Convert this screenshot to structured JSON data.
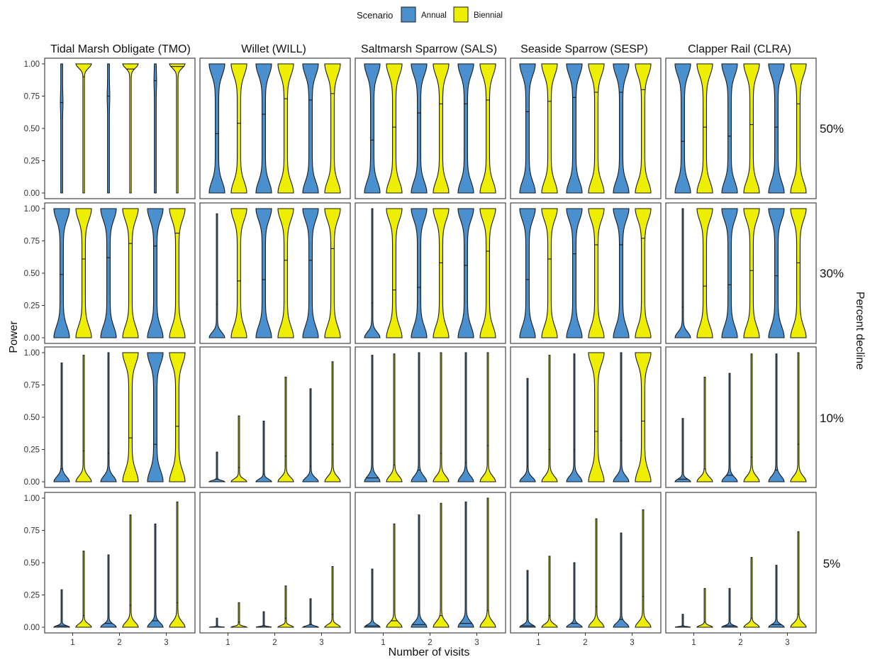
{
  "chart_data": {
    "type": "violin",
    "legend": {
      "title": "Scenario",
      "position": "top",
      "entries": [
        {
          "name": "Annual",
          "color": "#4A90CE"
        },
        {
          "name": "Biennial",
          "color": "#EEEE00"
        }
      ]
    },
    "columns": [
      "Tidal Marsh Obligate (TMO)",
      "Willet (WILL)",
      "Saltmarsh Sparrow (SALS)",
      "Seaside Sparrow (SESP)",
      "Clapper Rail (CLRA)"
    ],
    "rows": [
      "50%",
      "30%",
      "10%",
      "5%"
    ],
    "row_axis_title": "Percent decline",
    "xlabel": "Number of visits",
    "ylabel": "Power",
    "x_categories": [
      "1",
      "2",
      "3"
    ],
    "y_ticks": [
      "0.00",
      "0.25",
      "0.50",
      "0.75",
      "1.00"
    ],
    "ylim": [
      0,
      1
    ],
    "grid": false,
    "panels": [
      [
        {
          "Annual": [
            {
              "min": 0,
              "max": 1,
              "median": 0.7,
              "shape": "thin"
            },
            {
              "min": 0,
              "max": 1,
              "median": 0.75,
              "shape": "thin"
            },
            {
              "min": 0,
              "max": 1,
              "median": 0.87,
              "shape": "thin"
            }
          ],
          "Biennial": [
            {
              "min": 0,
              "max": 1,
              "median": 0.9,
              "shape": "thin-top"
            },
            {
              "min": 0,
              "max": 1,
              "median": 0.96,
              "shape": "thin-top"
            },
            {
              "min": 0,
              "max": 1,
              "median": 0.98,
              "shape": "thin-top"
            }
          ]
        },
        {
          "Annual": [
            {
              "min": 0,
              "max": 1,
              "median": 0.46,
              "shape": "wide"
            },
            {
              "min": 0,
              "max": 1,
              "median": 0.61,
              "shape": "wide"
            },
            {
              "min": 0,
              "max": 1,
              "median": 0.72,
              "shape": "wide"
            }
          ],
          "Biennial": [
            {
              "min": 0,
              "max": 1,
              "median": 0.54,
              "shape": "wide"
            },
            {
              "min": 0,
              "max": 1,
              "median": 0.73,
              "shape": "wide"
            },
            {
              "min": 0,
              "max": 1,
              "median": 0.77,
              "shape": "wide"
            }
          ]
        },
        {
          "Annual": [
            {
              "min": 0,
              "max": 1,
              "median": 0.41,
              "shape": "wide"
            },
            {
              "min": 0,
              "max": 1,
              "median": 0.62,
              "shape": "wide"
            },
            {
              "min": 0,
              "max": 1,
              "median": 0.69,
              "shape": "wide"
            }
          ],
          "Biennial": [
            {
              "min": 0,
              "max": 1,
              "median": 0.51,
              "shape": "wide"
            },
            {
              "min": 0,
              "max": 1,
              "median": 0.69,
              "shape": "wide"
            },
            {
              "min": 0,
              "max": 1,
              "median": 0.72,
              "shape": "wide"
            }
          ]
        },
        {
          "Annual": [
            {
              "min": 0,
              "max": 1,
              "median": 0.63,
              "shape": "wide"
            },
            {
              "min": 0,
              "max": 1,
              "median": 0.74,
              "shape": "wide"
            },
            {
              "min": 0,
              "max": 1,
              "median": 0.78,
              "shape": "wide"
            }
          ],
          "Biennial": [
            {
              "min": 0,
              "max": 1,
              "median": 0.71,
              "shape": "wide"
            },
            {
              "min": 0,
              "max": 1,
              "median": 0.78,
              "shape": "wide"
            },
            {
              "min": 0,
              "max": 1,
              "median": 0.8,
              "shape": "wide"
            }
          ]
        },
        {
          "Annual": [
            {
              "min": 0,
              "max": 1,
              "median": 0.4,
              "shape": "wide"
            },
            {
              "min": 0,
              "max": 1,
              "median": 0.44,
              "shape": "wide"
            },
            {
              "min": 0,
              "max": 1,
              "median": 0.51,
              "shape": "wide"
            }
          ],
          "Biennial": [
            {
              "min": 0,
              "max": 1,
              "median": 0.51,
              "shape": "wide"
            },
            {
              "min": 0,
              "max": 1,
              "median": 0.53,
              "shape": "wide"
            },
            {
              "min": 0,
              "max": 1,
              "median": 0.69,
              "shape": "wide"
            }
          ]
        }
      ],
      [
        {
          "Annual": [
            {
              "min": 0,
              "max": 1,
              "median": 0.49,
              "shape": "wide"
            },
            {
              "min": 0,
              "max": 1,
              "median": 0.62,
              "shape": "wide"
            },
            {
              "min": 0,
              "max": 1,
              "median": 0.71,
              "shape": "wide"
            }
          ],
          "Biennial": [
            {
              "min": 0,
              "max": 1,
              "median": 0.61,
              "shape": "wide"
            },
            {
              "min": 0,
              "max": 1,
              "median": 0.73,
              "shape": "wide"
            },
            {
              "min": 0,
              "max": 1,
              "median": 0.81,
              "shape": "wide"
            }
          ]
        },
        {
          "Annual": [
            {
              "min": 0,
              "max": 0.96,
              "median": 0.26,
              "shape": "bottom"
            },
            {
              "min": 0,
              "max": 1,
              "median": 0.45,
              "shape": "wide"
            },
            {
              "min": 0,
              "max": 1,
              "median": 0.6,
              "shape": "wide"
            }
          ],
          "Biennial": [
            {
              "min": 0,
              "max": 1,
              "median": 0.44,
              "shape": "wide"
            },
            {
              "min": 0,
              "max": 1,
              "median": 0.6,
              "shape": "wide"
            },
            {
              "min": 0,
              "max": 1,
              "median": 0.69,
              "shape": "wide"
            }
          ]
        },
        {
          "Annual": [
            {
              "min": 0,
              "max": 1,
              "median": 0.27,
              "shape": "bottom"
            },
            {
              "min": 0,
              "max": 1,
              "median": 0.39,
              "shape": "wide"
            },
            {
              "min": 0,
              "max": 1,
              "median": 0.56,
              "shape": "wide"
            }
          ],
          "Biennial": [
            {
              "min": 0,
              "max": 1,
              "median": 0.37,
              "shape": "wide"
            },
            {
              "min": 0,
              "max": 1,
              "median": 0.58,
              "shape": "wide"
            },
            {
              "min": 0,
              "max": 1,
              "median": 0.67,
              "shape": "wide"
            }
          ]
        },
        {
          "Annual": [
            {
              "min": 0,
              "max": 1,
              "median": 0.45,
              "shape": "wide"
            },
            {
              "min": 0,
              "max": 1,
              "median": 0.65,
              "shape": "wide"
            },
            {
              "min": 0,
              "max": 1,
              "median": 0.72,
              "shape": "wide"
            }
          ],
          "Biennial": [
            {
              "min": 0,
              "max": 1,
              "median": 0.61,
              "shape": "wide"
            },
            {
              "min": 0,
              "max": 1,
              "median": 0.72,
              "shape": "wide"
            },
            {
              "min": 0,
              "max": 1,
              "median": 0.77,
              "shape": "wide"
            }
          ]
        },
        {
          "Annual": [
            {
              "min": 0,
              "max": 1,
              "median": 0.24,
              "shape": "bottom"
            },
            {
              "min": 0,
              "max": 1,
              "median": 0.41,
              "shape": "wide"
            },
            {
              "min": 0,
              "max": 1,
              "median": 0.48,
              "shape": "wide"
            }
          ],
          "Biennial": [
            {
              "min": 0,
              "max": 1,
              "median": 0.4,
              "shape": "wide"
            },
            {
              "min": 0,
              "max": 1,
              "median": 0.52,
              "shape": "wide"
            },
            {
              "min": 0,
              "max": 1,
              "median": 0.58,
              "shape": "wide"
            }
          ]
        }
      ],
      [
        {
          "Annual": [
            {
              "min": 0,
              "max": 0.92,
              "median": 0.1,
              "shape": "bottom"
            },
            {
              "min": 0,
              "max": 1,
              "median": 0.22,
              "shape": "bottom"
            },
            {
              "min": 0,
              "max": 1,
              "median": 0.29,
              "shape": "wide"
            }
          ],
          "Biennial": [
            {
              "min": 0,
              "max": 0.98,
              "median": 0.24,
              "shape": "bottom"
            },
            {
              "min": 0,
              "max": 1,
              "median": 0.34,
              "shape": "wide"
            },
            {
              "min": 0,
              "max": 1,
              "median": 0.43,
              "shape": "wide"
            }
          ]
        },
        {
          "Annual": [
            {
              "min": 0,
              "max": 0.23,
              "median": 0.02,
              "shape": "bottom"
            },
            {
              "min": 0,
              "max": 0.47,
              "median": 0.06,
              "shape": "bottom"
            },
            {
              "min": 0,
              "max": 0.72,
              "median": 0.12,
              "shape": "bottom"
            }
          ],
          "Biennial": [
            {
              "min": 0,
              "max": 0.51,
              "median": 0.11,
              "shape": "bottom"
            },
            {
              "min": 0,
              "max": 0.81,
              "median": 0.2,
              "shape": "bottom"
            },
            {
              "min": 0,
              "max": 0.93,
              "median": 0.29,
              "shape": "bottom"
            }
          ]
        },
        {
          "Annual": [
            {
              "min": 0,
              "max": 0.98,
              "median": 0.03,
              "shape": "bottom"
            },
            {
              "min": 0,
              "max": 1,
              "median": 0.09,
              "shape": "bottom"
            },
            {
              "min": 0,
              "max": 1,
              "median": 0.15,
              "shape": "bottom"
            }
          ],
          "Biennial": [
            {
              "min": 0,
              "max": 0.99,
              "median": 0.13,
              "shape": "bottom"
            },
            {
              "min": 0,
              "max": 1,
              "median": 0.22,
              "shape": "bottom"
            },
            {
              "min": 0,
              "max": 1,
              "median": 0.28,
              "shape": "bottom"
            }
          ]
        },
        {
          "Annual": [
            {
              "min": 0,
              "max": 0.8,
              "median": 0.12,
              "shape": "bottom"
            },
            {
              "min": 0,
              "max": 0.99,
              "median": 0.25,
              "shape": "bottom"
            },
            {
              "min": 0,
              "max": 1,
              "median": 0.32,
              "shape": "bottom"
            }
          ],
          "Biennial": [
            {
              "min": 0,
              "max": 0.98,
              "median": 0.25,
              "shape": "bottom"
            },
            {
              "min": 0,
              "max": 1,
              "median": 0.39,
              "shape": "wide"
            },
            {
              "min": 0,
              "max": 1,
              "median": 0.47,
              "shape": "wide"
            }
          ]
        },
        {
          "Annual": [
            {
              "min": 0,
              "max": 0.49,
              "median": 0.02,
              "shape": "bottom"
            },
            {
              "min": 0,
              "max": 0.84,
              "median": 0.05,
              "shape": "bottom"
            },
            {
              "min": 0,
              "max": 0.99,
              "median": 0.09,
              "shape": "bottom"
            }
          ],
          "Biennial": [
            {
              "min": 0,
              "max": 0.81,
              "median": 0.1,
              "shape": "bottom"
            },
            {
              "min": 0,
              "max": 0.99,
              "median": 0.19,
              "shape": "bottom"
            },
            {
              "min": 0,
              "max": 1,
              "median": 0.29,
              "shape": "bottom"
            }
          ]
        }
      ],
      [
        {
          "Annual": [
            {
              "min": 0,
              "max": 0.29,
              "median": 0.01,
              "shape": "bottom"
            },
            {
              "min": 0,
              "max": 0.56,
              "median": 0.03,
              "shape": "bottom"
            },
            {
              "min": 0,
              "max": 0.8,
              "median": 0.05,
              "shape": "bottom"
            }
          ],
          "Biennial": [
            {
              "min": 0,
              "max": 0.59,
              "median": 0.09,
              "shape": "bottom"
            },
            {
              "min": 0,
              "max": 0.87,
              "median": 0.17,
              "shape": "bottom"
            },
            {
              "min": 0,
              "max": 0.97,
              "median": 0.19,
              "shape": "bottom"
            }
          ]
        },
        {
          "Annual": [
            {
              "min": 0,
              "max": 0.07,
              "median": 0.01,
              "shape": "bottom"
            },
            {
              "min": 0,
              "max": 0.12,
              "median": 0.01,
              "shape": "bottom"
            },
            {
              "min": 0,
              "max": 0.22,
              "median": 0.02,
              "shape": "bottom"
            }
          ],
          "Biennial": [
            {
              "min": 0,
              "max": 0.19,
              "median": 0.04,
              "shape": "bottom"
            },
            {
              "min": 0,
              "max": 0.32,
              "median": 0.07,
              "shape": "bottom"
            },
            {
              "min": 0,
              "max": 0.47,
              "median": 0.1,
              "shape": "bottom"
            }
          ]
        },
        {
          "Annual": [
            {
              "min": 0,
              "max": 0.45,
              "median": 0.01,
              "shape": "bottom"
            },
            {
              "min": 0,
              "max": 0.87,
              "median": 0.02,
              "shape": "bottom"
            },
            {
              "min": 0,
              "max": 0.97,
              "median": 0.03,
              "shape": "bottom"
            }
          ],
          "Biennial": [
            {
              "min": 0,
              "max": 0.8,
              "median": 0.05,
              "shape": "bottom"
            },
            {
              "min": 0,
              "max": 0.96,
              "median": 0.09,
              "shape": "bottom"
            },
            {
              "min": 0,
              "max": 1,
              "median": 0.13,
              "shape": "bottom"
            }
          ]
        },
        {
          "Annual": [
            {
              "min": 0,
              "max": 0.44,
              "median": 0.01,
              "shape": "bottom"
            },
            {
              "min": 0,
              "max": 0.5,
              "median": 0.03,
              "shape": "bottom"
            },
            {
              "min": 0,
              "max": 0.73,
              "median": 0.06,
              "shape": "bottom"
            }
          ],
          "Biennial": [
            {
              "min": 0,
              "max": 0.55,
              "median": 0.09,
              "shape": "bottom"
            },
            {
              "min": 0,
              "max": 0.84,
              "median": 0.16,
              "shape": "bottom"
            },
            {
              "min": 0,
              "max": 0.91,
              "median": 0.24,
              "shape": "bottom"
            }
          ]
        },
        {
          "Annual": [
            {
              "min": 0,
              "max": 0.1,
              "median": 0.01,
              "shape": "bottom"
            },
            {
              "min": 0,
              "max": 0.3,
              "median": 0.01,
              "shape": "bottom"
            },
            {
              "min": 0,
              "max": 0.48,
              "median": 0.02,
              "shape": "bottom"
            }
          ],
          "Biennial": [
            {
              "min": 0,
              "max": 0.3,
              "median": 0.04,
              "shape": "bottom"
            },
            {
              "min": 0,
              "max": 0.54,
              "median": 0.07,
              "shape": "bottom"
            },
            {
              "min": 0,
              "max": 0.74,
              "median": 0.1,
              "shape": "bottom"
            }
          ]
        }
      ]
    ]
  }
}
